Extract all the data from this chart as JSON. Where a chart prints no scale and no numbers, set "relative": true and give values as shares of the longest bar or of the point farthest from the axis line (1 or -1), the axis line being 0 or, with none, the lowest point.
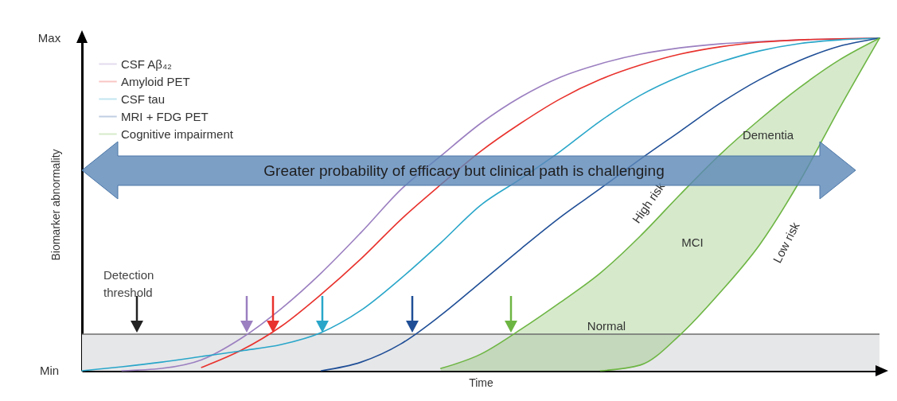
{
  "chart_data": {
    "type": "line",
    "relative": true,
    "xlabel": "Time",
    "ylabel": "Biomarker abnormality",
    "legend": "top left",
    "grid": false,
    "marker": "none",
    "line_style": "solid",
    "categories": [
      null,
      null,
      null,
      null,
      null,
      null,
      null,
      null,
      null,
      null,
      null,
      null,
      null,
      null,
      null,
      null,
      null,
      null,
      null,
      null,
      null
    ],
    "series": [
      {
        "name": "CSF Aβ₄₂",
        "color": "#9b7fc0",
        "values": [
          null,
          0,
          0.007,
          0.033,
          0.098,
          0.187,
          0.294,
          0.416,
          0.545,
          0.646,
          0.744,
          0.823,
          0.883,
          0.923,
          0.952,
          0.971,
          0.983,
          0.99,
          0.995,
          0.998,
          1
        ]
      },
      {
        "name": "Amyloid PET",
        "color": "#e8322d",
        "values": [
          null,
          null,
          null,
          0.01,
          0.062,
          0.134,
          0.23,
          0.337,
          0.455,
          0.56,
          0.66,
          0.744,
          0.818,
          0.876,
          0.919,
          0.952,
          0.974,
          0.988,
          0.995,
          0.998,
          1
        ]
      },
      {
        "name": "CSF tau",
        "color": "#29a6c9",
        "values": [
          0,
          0.012,
          0.026,
          0.043,
          0.06,
          0.079,
          0.115,
          0.182,
          0.278,
          0.385,
          0.498,
          0.577,
          0.66,
          0.751,
          0.828,
          0.885,
          0.928,
          0.962,
          0.984,
          0.995,
          1
        ]
      },
      {
        "name": "MRI + FDG PET",
        "color": "#1f4e96",
        "values": [
          null,
          null,
          null,
          null,
          null,
          null,
          0,
          0.026,
          0.081,
          0.167,
          0.266,
          0.366,
          0.462,
          0.548,
          0.636,
          0.72,
          0.804,
          0.876,
          0.933,
          0.976,
          1
        ]
      },
      {
        "name": "Cognitive impairment",
        "color": "#6db543",
        "values": [
          null,
          null,
          null,
          null,
          null,
          null,
          null,
          null,
          null,
          0.007,
          0.05,
          0.124,
          0.206,
          0.294,
          0.405,
          0.53,
          0.65,
          0.756,
          0.852,
          0.935,
          1
        ],
        "lower": [
          null,
          null,
          null,
          null,
          null,
          null,
          null,
          null,
          null,
          0,
          0,
          0,
          0,
          0,
          0.017,
          0.108,
          0.235,
          0.38,
          0.57,
          0.79,
          1
        ],
        "upper": [
          null,
          null,
          null,
          null,
          null,
          null,
          null,
          null,
          null,
          0.007,
          0.05,
          0.124,
          0.206,
          0.294,
          0.405,
          0.53,
          0.65,
          0.756,
          0.852,
          0.935,
          1
        ]
      },
      {
        "color": "#6db543",
        "values": [
          null,
          null,
          null,
          null,
          null,
          null,
          null,
          null,
          null,
          null,
          null,
          null,
          null,
          0,
          0.017,
          0.108,
          0.235,
          0.38,
          0.57,
          0.79,
          1
        ]
      }
    ],
    "bands": [
      {
        "axis": "y",
        "from": 0,
        "to": 0.11,
        "color": "#e6e7e9"
      }
    ],
    "ref_lines": [
      {
        "axis": "y",
        "value": 0.11,
        "label": "Detection threshold",
        "color": "#6d6d6d"
      }
    ],
    "annotations": [
      "Max",
      "Min",
      "High risk",
      "Low risk",
      "MCI",
      "Dementia",
      "Normal",
      "Greater probability of efficacy but clinical path is challenging"
    ]
  }
}
